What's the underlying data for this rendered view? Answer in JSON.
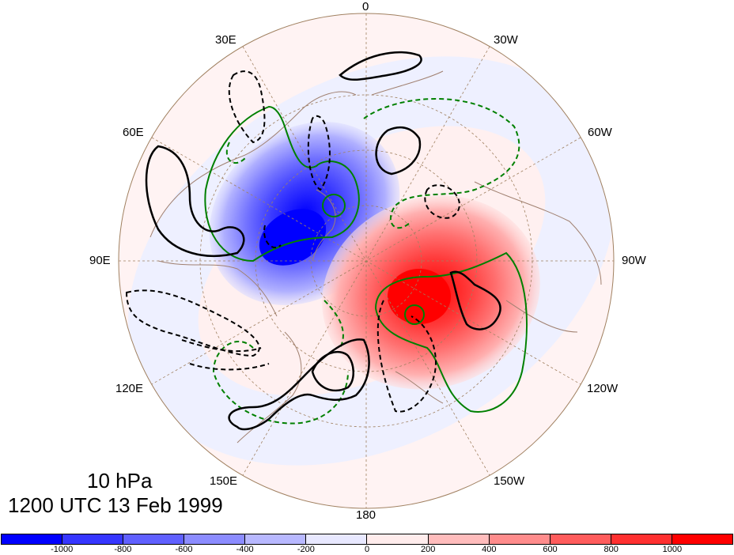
{
  "map": {
    "projection": "north polar stereographic",
    "longitude_labels": {
      "top": "0",
      "top_left": "30E",
      "top_right": "30W",
      "left_upper": "60E",
      "right_upper": "60W",
      "left": "90E",
      "right": "90W",
      "left_lower": "120E",
      "right_lower": "120W",
      "bottom_left": "150E",
      "bottom_right": "150W",
      "bottom": "180"
    },
    "level": "10 hPa",
    "valid_time": "1200 UTC 13 Feb 1999",
    "colors": {
      "negative_strong": "#0000ff",
      "positive_strong": "#ff0000",
      "neutral": "#ffffff",
      "coastline": "#a08070",
      "contour_black": "#000000",
      "contour_green": "#008000"
    }
  },
  "colorbar": {
    "labels": [
      "-1000",
      "-800",
      "-600",
      "-400",
      "-200",
      "0",
      "200",
      "400",
      "600",
      "800",
      "1000"
    ],
    "colors": [
      "#0000ff",
      "#3636ff",
      "#6060ff",
      "#8c8cff",
      "#b8b8ff",
      "#e8e8ff",
      "#ffecec",
      "#ffbcbc",
      "#ff8c8c",
      "#ff5c5c",
      "#ff3030",
      "#ff0000"
    ]
  }
}
